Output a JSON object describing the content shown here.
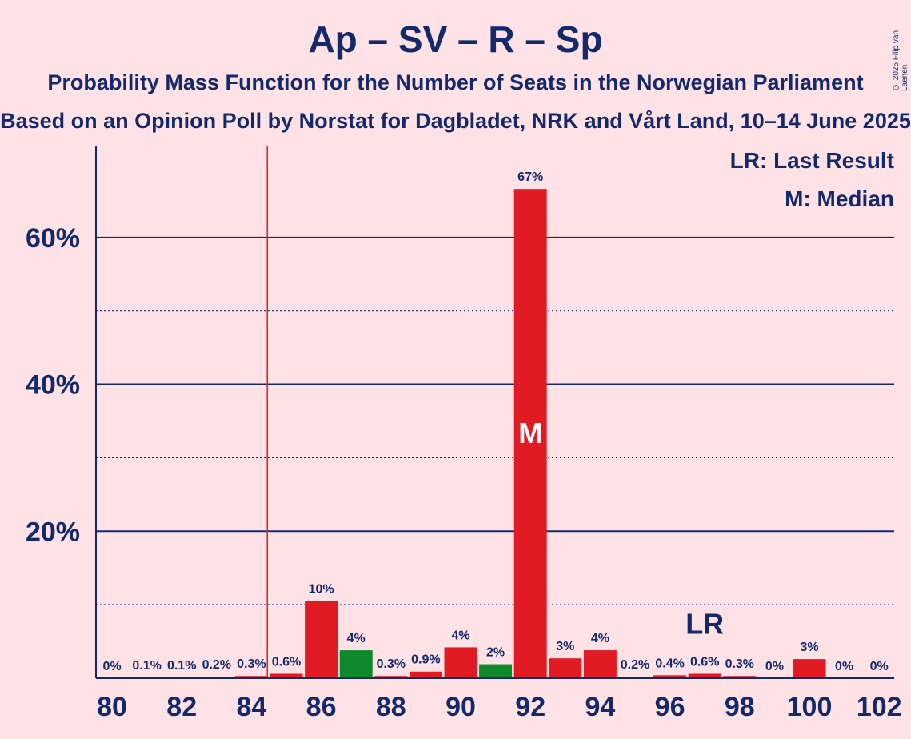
{
  "header": {
    "title": "Ap – SV – R – Sp",
    "subtitle": "Probability Mass Function for the Number of Seats in the Norwegian Parliament",
    "subtitle2": "Based on an Opinion Poll by Norstat for Dagbladet, NRK and Vårt Land, 10–14 June 2025",
    "copyright": "© 2025 Filip van Laenen"
  },
  "legend": {
    "last_result": "LR: Last Result",
    "median": "M: Median"
  },
  "colors": {
    "background": "#ffe2e6",
    "text": "#13296a",
    "red": "#e01b24",
    "green": "#0e8a2a",
    "majority_line": "#e01b24"
  },
  "chart_data": {
    "type": "bar",
    "x": [
      80,
      81,
      82,
      83,
      84,
      85,
      86,
      87,
      88,
      89,
      90,
      91,
      92,
      93,
      94,
      95,
      96,
      97,
      98,
      99,
      100,
      101,
      102
    ],
    "values": [
      0,
      0.1,
      0.1,
      0.2,
      0.3,
      0.6,
      10.5,
      3.8,
      0.3,
      0.9,
      4.2,
      1.9,
      66.6,
      2.7,
      3.8,
      0.2,
      0.4,
      0.6,
      0.3,
      0,
      2.6,
      0,
      0
    ],
    "labels": [
      "0%",
      "0.1%",
      "0.1%",
      "0.2%",
      "0.3%",
      "0.6%",
      "10%",
      "4%",
      "0.3%",
      "0.9%",
      "4%",
      "2%",
      "67%",
      "3%",
      "4%",
      "0.2%",
      "0.4%",
      "0.6%",
      "0.3%",
      "0%",
      "3%",
      "0%",
      "0%"
    ],
    "bar_colors": [
      "red",
      "red",
      "red",
      "red",
      "red",
      "red",
      "red",
      "green",
      "red",
      "red",
      "red",
      "green",
      "red",
      "red",
      "red",
      "red",
      "red",
      "red",
      "red",
      "red",
      "red",
      "red",
      "red"
    ],
    "x_ticks": [
      "80",
      "82",
      "84",
      "86",
      "88",
      "90",
      "92",
      "94",
      "96",
      "98",
      "100",
      "102"
    ],
    "y_ticks": [
      {
        "value": 20,
        "label": "20%"
      },
      {
        "value": 40,
        "label": "40%"
      },
      {
        "value": 60,
        "label": "60%"
      }
    ],
    "minor_gridlines": [
      10,
      30,
      50
    ],
    "ylim": [
      0,
      72.5
    ],
    "majority_threshold": 85,
    "median": 92,
    "median_marker": "M",
    "last_result": 97,
    "last_result_marker": "LR"
  }
}
